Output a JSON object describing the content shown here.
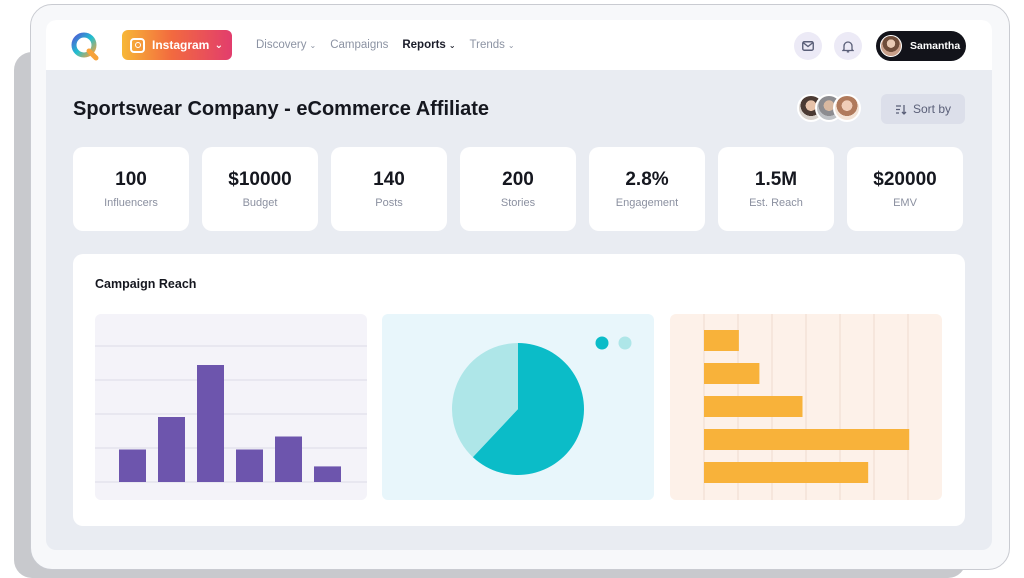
{
  "nav": {
    "platform_label": "Instagram",
    "menu": [
      {
        "label": "Discovery",
        "has_caret": true,
        "active": false
      },
      {
        "label": "Campaigns",
        "has_caret": false,
        "active": false
      },
      {
        "label": "Reports",
        "has_caret": true,
        "active": true
      },
      {
        "label": "Trends",
        "has_caret": true,
        "active": false
      }
    ],
    "user_name": "Samantha"
  },
  "header": {
    "title": "Sportswear Company - eCommerce Affiliate",
    "sort_label": "Sort by"
  },
  "stats": [
    {
      "value": "100",
      "label": "Influencers"
    },
    {
      "value": "$10000",
      "label": "Budget"
    },
    {
      "value": "140",
      "label": "Posts"
    },
    {
      "value": "200",
      "label": "Stories"
    },
    {
      "value": "2.8%",
      "label": "Engagement"
    },
    {
      "value": "1.5M",
      "label": "Est. Reach"
    },
    {
      "value": "$20000",
      "label": "EMV"
    }
  ],
  "section_title": "Campaign Reach",
  "colors": {
    "brand_purple": "#6d55ad",
    "teal": "#0bbcc8",
    "teal_light": "#aee6e8",
    "orange": "#f8b23a"
  },
  "chart_data": [
    {
      "type": "bar",
      "orientation": "vertical",
      "values": [
        25,
        50,
        90,
        25,
        35,
        12
      ],
      "ylim": [
        0,
        100
      ],
      "grid": true
    },
    {
      "type": "pie",
      "values": [
        62,
        38
      ],
      "colors": [
        "#0bbcc8",
        "#aee6e8"
      ]
    },
    {
      "type": "bar",
      "orientation": "horizontal",
      "values": [
        17,
        27,
        48,
        100,
        80
      ],
      "xlim": [
        0,
        115
      ],
      "grid": true
    }
  ]
}
